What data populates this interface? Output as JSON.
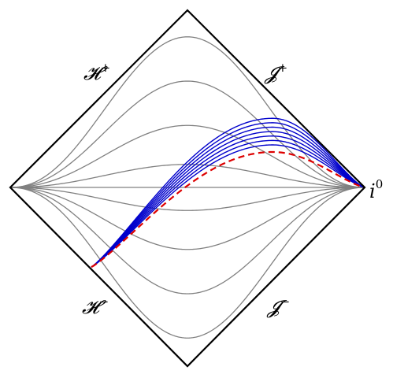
{
  "diagram": {
    "kind": "penrose-diagram",
    "colors": {
      "boundary": "#000000",
      "foliation": "#808080",
      "slices": "#0000cc",
      "limit_slice": "#dd0000"
    },
    "labels": {
      "horizon_future": "𝓗",
      "horizon_future_sup": "+",
      "scri_future": "𝓙",
      "scri_future_sup": "+",
      "horizon_past": "𝓗",
      "horizon_past_sup": "−",
      "scri_past": "𝓙",
      "scri_past_sup": "−",
      "spatial_infinity": "i",
      "spatial_infinity_sup": "0"
    },
    "foliation_levels": [
      -0.85,
      -0.6,
      -0.35,
      -0.13,
      0,
      0.13,
      0.35,
      0.6,
      0.85
    ],
    "hyperboloidal_slices": {
      "count": 7,
      "peak_heights": [
        0.39,
        0.365,
        0.34,
        0.315,
        0.29,
        0.265,
        0.24
      ],
      "peak_position": 0.74,
      "limit_peak_height": 0.2
    }
  }
}
